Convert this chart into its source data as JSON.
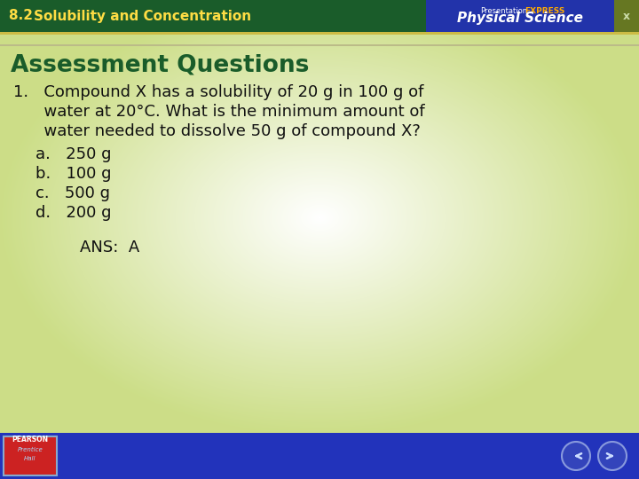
{
  "header_bg_color": "#1A5C2A",
  "header_text": "8.2 Solubility and Concentration",
  "header_text_color": "#FFDD44",
  "header_font_size": 11,
  "right_header_bg": "#2233AA",
  "presentation_label": "Presentation",
  "express_label": "EXPRESS",
  "express_color": "#FFAA00",
  "physical_science_label": "Physical Science",
  "physical_science_color": "#FFFFFF",
  "x_button_bg": "#667722",
  "x_button_text": "x",
  "x_button_color": "#CCDDAA",
  "slide_bg_color": "#FFFFFF",
  "corner_color": "#CCDD88",
  "assessment_title": "Assessment Questions",
  "assessment_title_color": "#1A5C2A",
  "assessment_title_font_size": 19,
  "q_line1": "1.   Compound X has a solubility of 20 g in 100 g of",
  "q_line2": "      water at 20°C. What is the minimum amount of",
  "q_line3": "      water needed to dissolve 50 g of compound X?",
  "answer_a": "a.   250 g",
  "answer_b": "b.   100 g",
  "answer_c": "c.   500 g",
  "answer_d": "d.   200 g",
  "ans_text": "ANS:  A",
  "body_text_color": "#111111",
  "body_font_size": 13,
  "ans_font_size": 13,
  "footer_bg_color": "#2233BB",
  "pearson_box_color": "#CC2222",
  "pearson_text_color": "#FFFFFF",
  "pearson_subtext_color": "#AADDFF",
  "nav_circle_color": "#5566DD",
  "nav_circle_edge": "#AABBEE"
}
